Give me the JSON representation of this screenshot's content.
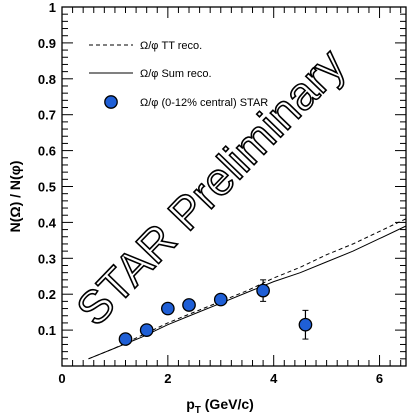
{
  "chart_data": {
    "type": "scatter",
    "xlabel": "p",
    "xlabel_sub": "T",
    "xlabel_unit": " (GeV/c)",
    "ylabel": "N(Ω) / N(φ)",
    "xlim": [
      0,
      6.5
    ],
    "ylim": [
      0,
      1.0
    ],
    "x_ticks": [
      "0",
      "2",
      "4",
      "6"
    ],
    "y_ticks": [
      "0.1",
      "0.2",
      "0.3",
      "0.4",
      "0.5",
      "0.6",
      "0.7",
      "0.8",
      "0.9",
      "1"
    ],
    "grid": false,
    "legend_position": "top-left",
    "series": [
      {
        "name": "Ω/φ TT reco.",
        "style": "dashed-line",
        "x": [
          0.5,
          1.0,
          1.5,
          2.0,
          2.5,
          3.0,
          3.5,
          4.0,
          4.5,
          5.0,
          5.5,
          6.0,
          6.5
        ],
        "y": [
          0.02,
          0.05,
          0.085,
          0.12,
          0.15,
          0.18,
          0.21,
          0.245,
          0.275,
          0.31,
          0.34,
          0.375,
          0.41
        ]
      },
      {
        "name": "Ω/φ Sum reco.",
        "style": "solid-line",
        "x": [
          0.5,
          1.0,
          1.5,
          2.0,
          2.5,
          3.0,
          3.5,
          4.0,
          4.5,
          5.0,
          5.5,
          6.0,
          6.5
        ],
        "y": [
          0.02,
          0.05,
          0.08,
          0.115,
          0.145,
          0.175,
          0.205,
          0.235,
          0.26,
          0.29,
          0.32,
          0.355,
          0.39
        ]
      },
      {
        "name": "Ω/φ (0-12% central) STAR",
        "style": "markers",
        "color": "#1f5fd6",
        "x": [
          1.2,
          1.6,
          2.0,
          2.4,
          3.0,
          3.8,
          4.6
        ],
        "y": [
          0.075,
          0.1,
          0.16,
          0.17,
          0.185,
          0.21,
          0.115
        ],
        "yerr": [
          0.008,
          0.008,
          0.012,
          0.012,
          0.015,
          0.03,
          0.04
        ]
      }
    ],
    "watermark": "STAR Preliminary"
  }
}
